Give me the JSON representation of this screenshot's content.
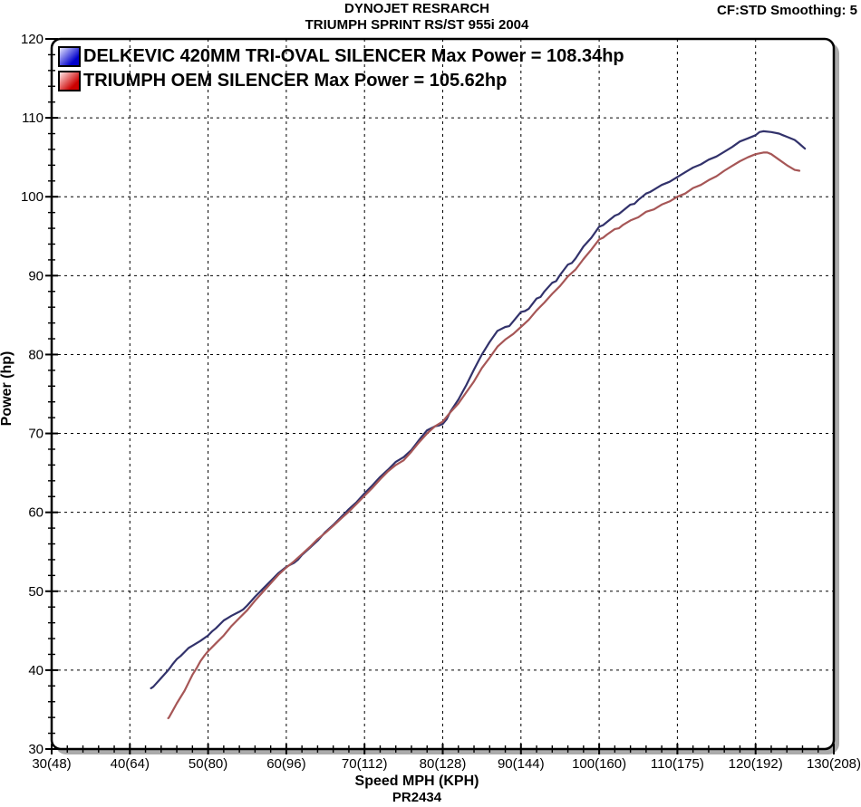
{
  "header": {
    "title_line1": "DYNOJET RESRARCH",
    "title_line2": "TRIUMPH SPRINT RS/ST 955i 2004",
    "top_right": "CF:STD Smoothing: 5"
  },
  "chart_data": {
    "type": "line",
    "title": "DYNOJET RESRARCH - TRIUMPH SPRINT RS/ST 955i 2004",
    "xlabel": "Speed MPH (KPH)",
    "ylabel": "Power (hp)",
    "footer": "PR2434",
    "xlim": [
      30,
      130
    ],
    "ylim": [
      30,
      120
    ],
    "x_major_step": 10,
    "x_minor_step": 2,
    "y_major_step": 10,
    "y_minor_step": 2,
    "grid": "dashed-major",
    "legend_position": "top-left-inside",
    "x_tick_labels": [
      "30(48)",
      "40(64)",
      "50(80)",
      "60(96)",
      "70(112)",
      "80(128)",
      "90(144)",
      "100(160)",
      "110(175)",
      "120(192)",
      "130(208)"
    ],
    "y_tick_labels": [
      "30",
      "40",
      "50",
      "60",
      "70",
      "80",
      "90",
      "100",
      "110",
      "120"
    ],
    "frame_color": "#000000",
    "shadow_color": "#aaaaaa",
    "series": [
      {
        "name": "DELKEVIC 420MM TRI-OVAL SILENCER",
        "label": "DELKEVIC 420MM TRI-OVAL SILENCER Max Power = 108.34hp",
        "max_power_hp": 108.34,
        "color": "#32326b",
        "swatch_light": "#e6e6ff",
        "swatch_dark": "#0000cc",
        "points": [
          [
            42.7,
            37.7
          ],
          [
            43,
            37.9
          ],
          [
            44,
            39.0
          ],
          [
            45,
            40.1
          ],
          [
            45.5,
            40.8
          ],
          [
            46,
            41.4
          ],
          [
            46.5,
            41.8
          ],
          [
            47,
            42.3
          ],
          [
            47.5,
            42.8
          ],
          [
            48,
            43.1
          ],
          [
            49,
            43.7
          ],
          [
            50,
            44.4
          ],
          [
            50.5,
            44.9
          ],
          [
            51,
            45.3
          ],
          [
            52,
            46.3
          ],
          [
            52.5,
            46.6
          ],
          [
            53,
            46.9
          ],
          [
            54,
            47.4
          ],
          [
            54.5,
            47.7
          ],
          [
            55,
            48.2
          ],
          [
            56,
            49.3
          ],
          [
            57,
            50.3
          ],
          [
            58,
            51.3
          ],
          [
            59,
            52.3
          ],
          [
            60,
            53.1
          ],
          [
            61,
            53.6
          ],
          [
            61.5,
            54.0
          ],
          [
            62,
            54.6
          ],
          [
            63,
            55.5
          ],
          [
            64,
            56.4
          ],
          [
            65,
            57.5
          ],
          [
            66,
            58.4
          ],
          [
            67,
            59.4
          ],
          [
            68,
            60.4
          ],
          [
            69,
            61.3
          ],
          [
            70,
            62.4
          ],
          [
            71,
            63.4
          ],
          [
            72,
            64.5
          ],
          [
            73,
            65.4
          ],
          [
            74,
            66.4
          ],
          [
            75,
            67.0
          ],
          [
            76,
            67.9
          ],
          [
            77,
            69.2
          ],
          [
            78,
            70.4
          ],
          [
            79,
            70.9
          ],
          [
            79.5,
            71.0
          ],
          [
            80,
            71.2
          ],
          [
            80.5,
            71.8
          ],
          [
            81,
            72.8
          ],
          [
            82,
            74.3
          ],
          [
            83,
            76.1
          ],
          [
            84,
            78.1
          ],
          [
            85,
            80.0
          ],
          [
            86,
            81.6
          ],
          [
            87,
            83.0
          ],
          [
            88,
            83.5
          ],
          [
            88.5,
            83.6
          ],
          [
            89,
            84.2
          ],
          [
            90,
            85.4
          ],
          [
            90.5,
            85.5
          ],
          [
            91,
            85.8
          ],
          [
            92,
            87.1
          ],
          [
            92.5,
            87.3
          ],
          [
            93,
            88.0
          ],
          [
            94,
            89.1
          ],
          [
            94.5,
            89.3
          ],
          [
            95,
            90.1
          ],
          [
            96,
            91.4
          ],
          [
            96.5,
            91.6
          ],
          [
            97,
            92.2
          ],
          [
            98,
            93.7
          ],
          [
            99,
            94.8
          ],
          [
            100,
            96.2
          ],
          [
            100.5,
            96.4
          ],
          [
            101,
            96.8
          ],
          [
            102,
            97.6
          ],
          [
            102.5,
            97.8
          ],
          [
            103,
            98.2
          ],
          [
            104,
            99.0
          ],
          [
            104.5,
            99.1
          ],
          [
            105,
            99.6
          ],
          [
            106,
            100.4
          ],
          [
            106.5,
            100.6
          ],
          [
            107,
            100.9
          ],
          [
            108,
            101.5
          ],
          [
            109,
            101.9
          ],
          [
            110,
            102.5
          ],
          [
            111,
            103.1
          ],
          [
            112,
            103.7
          ],
          [
            113,
            104.1
          ],
          [
            114,
            104.7
          ],
          [
            115,
            105.1
          ],
          [
            116,
            105.7
          ],
          [
            117,
            106.3
          ],
          [
            118,
            107.0
          ],
          [
            119,
            107.4
          ],
          [
            120,
            107.8
          ],
          [
            120.5,
            108.2
          ],
          [
            121,
            108.3
          ],
          [
            122,
            108.2
          ],
          [
            123,
            108.0
          ],
          [
            123.5,
            107.8
          ],
          [
            124,
            107.6
          ],
          [
            125,
            107.2
          ],
          [
            125.5,
            106.8
          ],
          [
            126.3,
            106.1
          ]
        ]
      },
      {
        "name": "TRIUMPH OEM SILENCER",
        "label": "TRIUMPH OEM SILENCER Max Power = 105.62hp",
        "max_power_hp": 105.62,
        "color": "#a65656",
        "swatch_light": "#ffe6e6",
        "swatch_dark": "#cc0000",
        "points": [
          [
            44.9,
            33.9
          ],
          [
            45,
            34.0
          ],
          [
            45.5,
            34.9
          ],
          [
            46,
            35.8
          ],
          [
            46.5,
            36.6
          ],
          [
            47,
            37.4
          ],
          [
            47.5,
            38.4
          ],
          [
            48,
            39.4
          ],
          [
            48.5,
            40.2
          ],
          [
            49,
            41.1
          ],
          [
            49.5,
            41.8
          ],
          [
            50,
            42.4
          ],
          [
            51,
            43.4
          ],
          [
            52,
            44.4
          ],
          [
            53,
            45.6
          ],
          [
            54,
            46.6
          ],
          [
            55,
            47.6
          ],
          [
            56,
            48.8
          ],
          [
            57,
            49.9
          ],
          [
            58,
            51.0
          ],
          [
            59,
            52.1
          ],
          [
            60,
            53.0
          ],
          [
            61,
            53.8
          ],
          [
            62,
            54.7
          ],
          [
            63,
            55.6
          ],
          [
            64,
            56.6
          ],
          [
            65,
            57.4
          ],
          [
            66,
            58.3
          ],
          [
            67,
            59.2
          ],
          [
            68,
            60.1
          ],
          [
            69,
            61.1
          ],
          [
            70,
            62.1
          ],
          [
            71,
            63.1
          ],
          [
            72,
            64.2
          ],
          [
            73,
            65.2
          ],
          [
            74,
            66.0
          ],
          [
            75,
            66.6
          ],
          [
            76,
            67.7
          ],
          [
            77,
            68.9
          ],
          [
            78,
            70.0
          ],
          [
            79,
            70.9
          ],
          [
            80,
            71.5
          ],
          [
            81,
            72.7
          ],
          [
            82,
            73.8
          ],
          [
            83,
            75.2
          ],
          [
            84,
            76.6
          ],
          [
            85,
            78.3
          ],
          [
            86,
            79.6
          ],
          [
            87,
            81.0
          ],
          [
            88,
            81.9
          ],
          [
            89,
            82.6
          ],
          [
            90,
            83.5
          ],
          [
            91,
            84.4
          ],
          [
            92,
            85.6
          ],
          [
            93,
            86.6
          ],
          [
            94,
            87.7
          ],
          [
            95,
            88.7
          ],
          [
            96,
            89.9
          ],
          [
            97,
            90.8
          ],
          [
            98,
            92.1
          ],
          [
            99,
            93.3
          ],
          [
            100,
            94.6
          ],
          [
            100.5,
            94.8
          ],
          [
            101,
            95.2
          ],
          [
            102,
            95.9
          ],
          [
            102.5,
            96.0
          ],
          [
            103,
            96.4
          ],
          [
            104,
            97.0
          ],
          [
            105,
            97.4
          ],
          [
            106,
            98.1
          ],
          [
            107,
            98.4
          ],
          [
            108,
            99.0
          ],
          [
            109,
            99.4
          ],
          [
            110,
            100.0
          ],
          [
            111,
            100.4
          ],
          [
            112,
            101.1
          ],
          [
            113,
            101.5
          ],
          [
            114,
            102.1
          ],
          [
            115,
            102.6
          ],
          [
            116,
            103.3
          ],
          [
            117,
            103.9
          ],
          [
            118,
            104.5
          ],
          [
            119,
            105.0
          ],
          [
            120,
            105.4
          ],
          [
            121,
            105.6
          ],
          [
            121.5,
            105.6
          ],
          [
            122,
            105.4
          ],
          [
            123,
            104.7
          ],
          [
            124,
            104.0
          ],
          [
            125,
            103.4
          ],
          [
            125.6,
            103.3
          ]
        ]
      }
    ]
  }
}
